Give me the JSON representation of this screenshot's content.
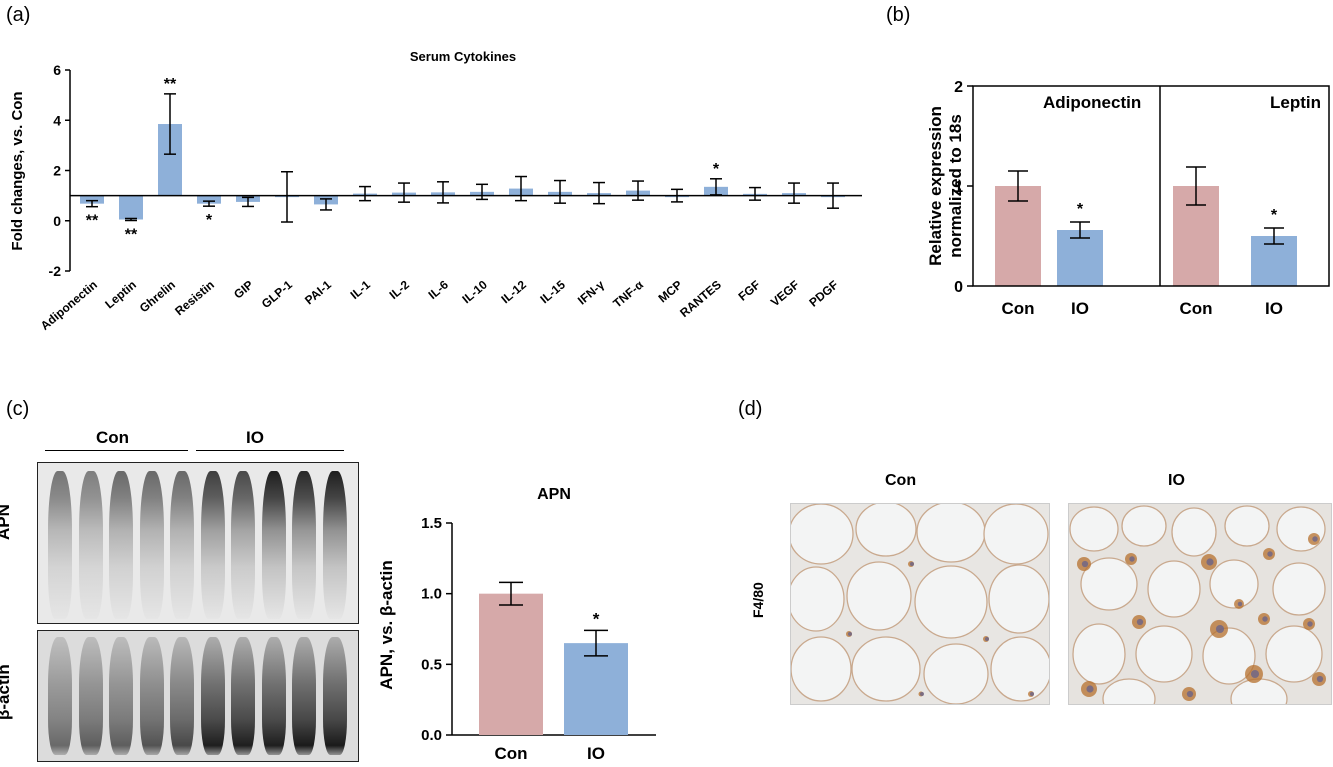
{
  "panels": {
    "a": "(a)",
    "b": "(b)",
    "c": "(c)",
    "d": "(d)"
  },
  "colors": {
    "con": "#d6a9a9",
    "io": "#8eb0d9",
    "axis": "#000000"
  },
  "chart_data": [
    {
      "id": "a",
      "type": "bar",
      "title": "Serum Cytokines",
      "ylabel": "Fold changes, vs. Con",
      "xlabel": "",
      "ylim": [
        -2,
        6
      ],
      "yticks": [
        "-2",
        "0",
        "2",
        "4",
        "6"
      ],
      "baseline": 1,
      "categories": [
        "Adiponectin",
        "Leptin",
        "Ghrelin",
        "Resistin",
        "GIP",
        "GLP-1",
        "PAI-1",
        "IL-1",
        "IL-2",
        "IL-6",
        "IL-10",
        "IL-12",
        "IL-15",
        "IFN-γ",
        "TNF-α",
        "MCP",
        "RANTES",
        "FGF",
        "VEGF",
        "PDGF"
      ],
      "values": [
        0.68,
        0.05,
        3.85,
        0.68,
        0.75,
        0.95,
        0.65,
        1.08,
        1.12,
        1.13,
        1.15,
        1.28,
        1.15,
        1.1,
        1.2,
        1.0,
        1.35,
        1.07,
        1.1,
        1.0
      ],
      "err": [
        0.12,
        0.04,
        1.2,
        0.1,
        0.18,
        1.0,
        0.22,
        0.28,
        0.38,
        0.42,
        0.3,
        0.48,
        0.45,
        0.42,
        0.38,
        0.25,
        0.32,
        0.25,
        0.4,
        0.5
      ],
      "significance": [
        "**",
        "**",
        "**",
        "*",
        "",
        "",
        "",
        "",
        "",
        "",
        "",
        "",
        "",
        "",
        "",
        "",
        "*",
        "",
        "",
        ""
      ]
    },
    {
      "id": "b",
      "type": "bar",
      "title": "",
      "ylabel": "Relative expression normalized to 18s",
      "ylabel_lines": [
        "Relative expression",
        "normalized to 18s"
      ],
      "ylim": [
        0,
        2
      ],
      "yticks": [
        "0",
        "1",
        "2"
      ],
      "groups": [
        {
          "name": "Adiponectin",
          "categories": [
            "Con",
            "IO"
          ],
          "values": [
            1.0,
            0.56
          ],
          "err": [
            0.15,
            0.08
          ],
          "significance": [
            "",
            "*"
          ]
        },
        {
          "name": "Leptin",
          "categories": [
            "Con",
            "IO"
          ],
          "values": [
            1.0,
            0.5
          ],
          "err": [
            0.19,
            0.08
          ],
          "significance": [
            "",
            "*"
          ]
        }
      ]
    },
    {
      "id": "c",
      "type": "bar",
      "title": "APN",
      "ylabel": "APN, vs. β-actin",
      "ylim": [
        0,
        1.5
      ],
      "yticks": [
        "0.0",
        "0.5",
        "1.0",
        "1.5"
      ],
      "categories": [
        "Con",
        "IO"
      ],
      "values": [
        1.0,
        0.65
      ],
      "err": [
        0.08,
        0.09
      ],
      "significance": [
        "",
        "*"
      ]
    }
  ],
  "blot": {
    "groups": [
      "Con",
      "IO"
    ],
    "rows": [
      "APN",
      "β-actin"
    ]
  },
  "histology": {
    "columns": [
      "Con",
      "IO"
    ],
    "row_label": "F4/80"
  }
}
